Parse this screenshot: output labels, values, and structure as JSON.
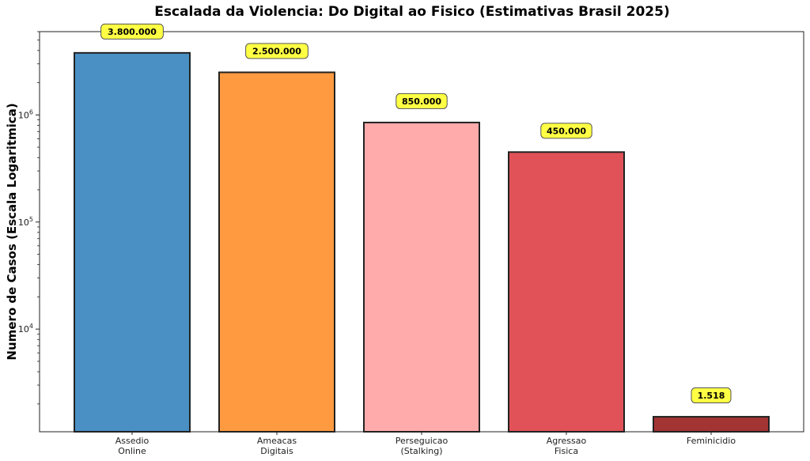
{
  "chart_data": {
    "type": "bar",
    "title": "Escalada da Violencia: Do Digital ao Fisico (Estimativas Brasil 2025)",
    "ylabel": "Numero de Casos (Escala Logaritmica)",
    "xlabel": "",
    "yscale": "log",
    "ylim": [
      1100,
      6000000
    ],
    "categories": [
      [
        "Assedio",
        "Online"
      ],
      [
        "Ameacas",
        "Digitais"
      ],
      [
        "Perseguicao",
        "(Stalking)"
      ],
      [
        "Agressao",
        "Fisica"
      ],
      [
        "Feminicidio"
      ]
    ],
    "values": [
      3800000,
      2500000,
      850000,
      450000,
      1518
    ],
    "value_labels": [
      "3.800.000",
      "2.500.000",
      "850.000",
      "450.000",
      "1.518"
    ],
    "colors": [
      "#4a90c4",
      "#ff9a40",
      "#ffabab",
      "#e05257",
      "#a33434"
    ],
    "label_box_color": "#ffff44",
    "y_ticks": [
      {
        "value": 10000,
        "base": "10",
        "exp": "4"
      },
      {
        "value": 100000,
        "base": "10",
        "exp": "5"
      },
      {
        "value": 1000000,
        "base": "10",
        "exp": "6"
      }
    ],
    "grid": false,
    "legend": "none"
  }
}
